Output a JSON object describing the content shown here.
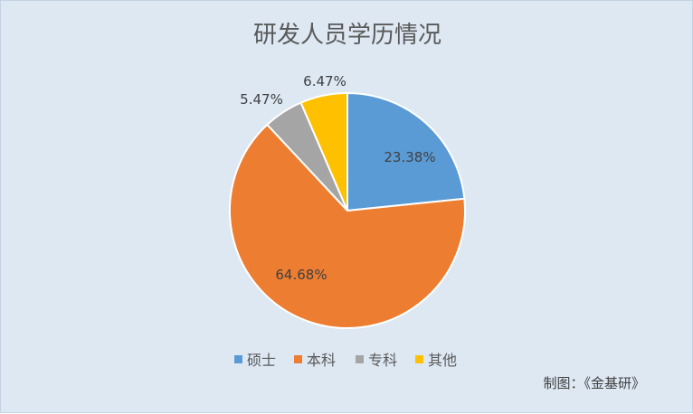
{
  "chart_data": {
    "type": "pie",
    "title": "研发人员学历情况",
    "categories": [
      "硕士",
      "本科",
      "专科",
      "其他"
    ],
    "values": [
      23.38,
      64.68,
      5.47,
      6.47
    ],
    "labels": [
      "23.38%",
      "64.68%",
      "5.47%",
      "6.47%"
    ],
    "colors": [
      "#5b9bd5",
      "#ed7d31",
      "#a5a5a5",
      "#ffc000"
    ],
    "legend_position": "bottom",
    "start_angle_deg": 0,
    "direction": "clockwise"
  },
  "footer": {
    "credit": "制图：《金基研》"
  },
  "style": {
    "background": "#dde8f3",
    "slice_border": "#ffffff"
  }
}
